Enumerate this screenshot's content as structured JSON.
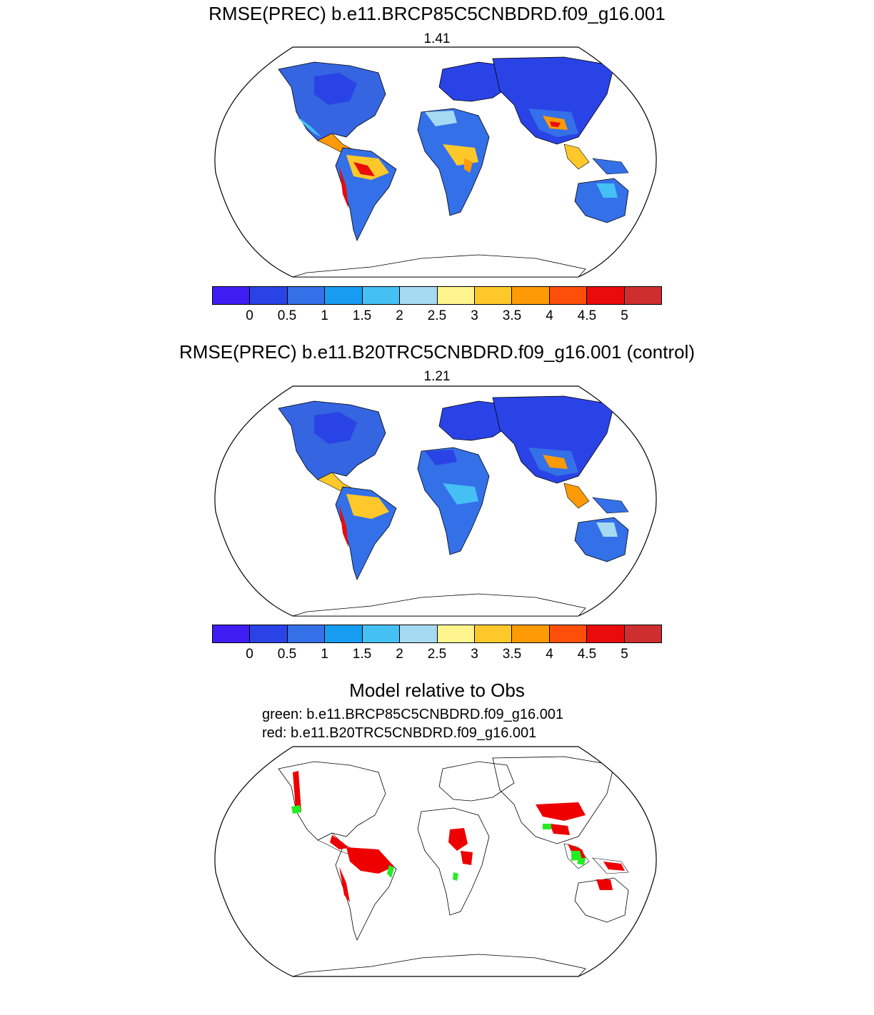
{
  "panels": [
    {
      "title": "RMSE(PREC) b.e11.BRCP85C5CNBDRD.f09_g16.001",
      "value": "1.41"
    },
    {
      "title": "RMSE(PREC) b.e11.B20TRC5CNBDRD.f09_g16.001 (control)",
      "value": "1.21"
    }
  ],
  "colorbar": {
    "colors": [
      "#3f1cf2",
      "#2a43e6",
      "#3470e8",
      "#169cf0",
      "#45c0f5",
      "#a6d9f2",
      "#fff58f",
      "#fec82a",
      "#fe9a06",
      "#fd4f0a",
      "#ea0b0b",
      "#cf2e2e"
    ],
    "labels": [
      "0",
      "0.5",
      "1",
      "1.5",
      "2",
      "2.5",
      "3",
      "3.5",
      "4",
      "4.5",
      "5"
    ]
  },
  "comparison": {
    "title": "Model relative to Obs",
    "green_label": "green: b.e11.BRCP85C5CNBDRD.f09_g16.001",
    "red_label": "red: b.e11.B20TRC5CNBDRD.f09_g16.001"
  }
}
